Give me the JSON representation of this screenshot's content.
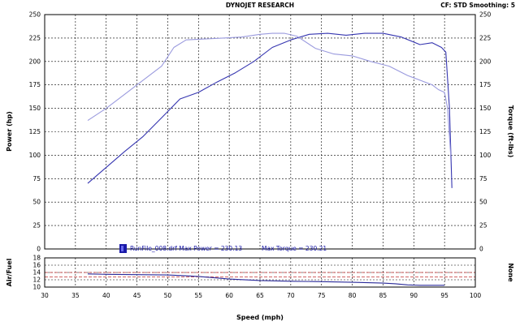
{
  "header": {
    "title": "DYNOJET RESEARCH",
    "settings": "CF: STD  Smoothing: 5"
  },
  "chart_data": [
    {
      "type": "line",
      "title": "DYNOJET RESEARCH",
      "xlabel": "Speed (mph)",
      "ylabel": "Power (hp)",
      "y2label": "Torque (ft-lbs)",
      "xlim": [
        30,
        100
      ],
      "ylim": [
        0,
        250
      ],
      "y2lim": [
        0,
        250
      ],
      "x_ticks": [
        30,
        35,
        40,
        45,
        50,
        55,
        60,
        65,
        70,
        75,
        80,
        85,
        90,
        95,
        100
      ],
      "y_ticks": [
        0,
        25,
        50,
        75,
        100,
        125,
        150,
        175,
        200,
        225,
        250
      ],
      "grid": true,
      "legend": {
        "entry": "RunFile_008.drf Max Power = 230.13",
        "annotation": "Max Torque = 230.21",
        "color": "#1a1aa8",
        "placement": "bottom-center"
      },
      "series": [
        {
          "name": "Power",
          "color": "#3535b0",
          "x": [
            37,
            40,
            43,
            46,
            49,
            52,
            55,
            58,
            61,
            64,
            67,
            70,
            73,
            76,
            79,
            82,
            85,
            88,
            91,
            93,
            94.5,
            95.2,
            95.8,
            96.2
          ],
          "y": [
            70,
            87,
            104,
            120,
            140,
            160,
            167,
            178,
            188,
            200,
            215,
            223,
            229,
            230,
            228,
            230,
            230,
            226,
            218,
            220,
            215,
            210,
            150,
            65
          ]
        },
        {
          "name": "Torque",
          "color": "#9a9ade",
          "x": [
            37,
            40,
            43,
            46,
            49,
            51,
            53,
            56,
            59,
            62,
            65,
            67,
            69,
            71,
            74,
            77,
            80,
            83,
            86,
            89,
            91,
            93,
            94,
            95,
            95.5,
            96
          ],
          "y": [
            137,
            150,
            165,
            180,
            195,
            215,
            223,
            224,
            225,
            226,
            229,
            230,
            230,
            227,
            214,
            208,
            206,
            200,
            195,
            185,
            180,
            175,
            170,
            167,
            150,
            100
          ]
        }
      ]
    },
    {
      "type": "line",
      "ylabel": "Air/Fuel",
      "y2label": "None",
      "xlim": [
        30,
        100
      ],
      "ylim": [
        10,
        18
      ],
      "y_ticks": [
        10,
        12,
        14,
        16,
        18
      ],
      "grid": true,
      "reference_lines": [
        {
          "y": 12.8,
          "color": "#c03030",
          "style": "dashed"
        },
        {
          "y": 14.0,
          "color": "#c03030",
          "style": "dashed"
        }
      ],
      "series": [
        {
          "name": "Air/Fuel",
          "color": "#2a2a9a",
          "x": [
            37,
            40,
            45,
            50,
            53,
            55,
            60,
            65,
            70,
            75,
            80,
            85,
            87,
            89,
            91,
            93,
            95
          ],
          "y": [
            13.6,
            13.5,
            13.4,
            13.3,
            13.1,
            12.9,
            12.2,
            11.8,
            11.6,
            11.5,
            11.3,
            11.1,
            10.9,
            10.6,
            10.5,
            10.5,
            10.5
          ]
        }
      ]
    }
  ]
}
